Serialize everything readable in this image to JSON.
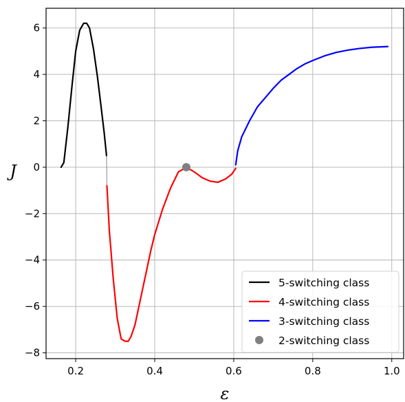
{
  "chart_data": {
    "type": "line",
    "xlabel": "ε",
    "ylabel": "J",
    "xlim": [
      0.125,
      1.03
    ],
    "ylim": [
      -8.25,
      6.85
    ],
    "xticks": [
      0.2,
      0.4,
      0.6,
      0.8,
      1.0
    ],
    "xtick_labels": [
      "0.2",
      "0.4",
      "0.6",
      "0.8",
      "1.0"
    ],
    "yticks": [
      -8,
      -6,
      -4,
      -2,
      0,
      2,
      4,
      6
    ],
    "ytick_labels": [
      "−8",
      "−6",
      "−4",
      "−2",
      "0",
      "2",
      "4",
      "6"
    ],
    "grid": true,
    "legend_position": "lower-right",
    "series": [
      {
        "name": "5-switching class",
        "color": "#000000",
        "kind": "line",
        "x": [
          0.163,
          0.17,
          0.18,
          0.19,
          0.2,
          0.21,
          0.22,
          0.228,
          0.235,
          0.245,
          0.255,
          0.265,
          0.272,
          0.278
        ],
        "y": [
          0.0,
          0.2,
          1.7,
          3.4,
          5.0,
          5.9,
          6.2,
          6.2,
          6.0,
          5.1,
          3.9,
          2.5,
          1.5,
          0.5
        ]
      },
      {
        "name": "4-switching class",
        "color": "#ff0000",
        "kind": "line",
        "x": [
          0.279,
          0.285,
          0.295,
          0.305,
          0.315,
          0.325,
          0.333,
          0.34,
          0.35,
          0.36,
          0.37,
          0.38,
          0.39,
          0.4,
          0.42,
          0.44,
          0.46,
          0.48,
          0.5,
          0.52,
          0.54,
          0.56,
          0.58,
          0.595,
          0.605
        ],
        "y": [
          -0.8,
          -2.7,
          -4.8,
          -6.5,
          -7.4,
          -7.5,
          -7.5,
          -7.3,
          -6.8,
          -6.0,
          -5.2,
          -4.4,
          -3.6,
          -2.9,
          -1.8,
          -0.9,
          -0.2,
          0.0,
          -0.2,
          -0.45,
          -0.6,
          -0.65,
          -0.5,
          -0.3,
          -0.05
        ]
      },
      {
        "name": "3-switching class",
        "color": "#0000ff",
        "kind": "line",
        "x": [
          0.605,
          0.61,
          0.62,
          0.64,
          0.66,
          0.68,
          0.7,
          0.72,
          0.74,
          0.76,
          0.78,
          0.8,
          0.83,
          0.86,
          0.89,
          0.92,
          0.95,
          0.99
        ],
        "y": [
          0.1,
          0.7,
          1.3,
          2.0,
          2.6,
          3.0,
          3.4,
          3.75,
          4.0,
          4.25,
          4.45,
          4.6,
          4.8,
          4.95,
          5.05,
          5.12,
          5.17,
          5.2
        ]
      },
      {
        "name": "2-switching class",
        "color": "#808080",
        "kind": "point",
        "x": [
          0.48
        ],
        "y": [
          0.0
        ]
      }
    ],
    "connector": {
      "color": "#888888",
      "x": [
        0.278,
        0.279
      ],
      "y": [
        0.5,
        -0.8
      ]
    }
  }
}
